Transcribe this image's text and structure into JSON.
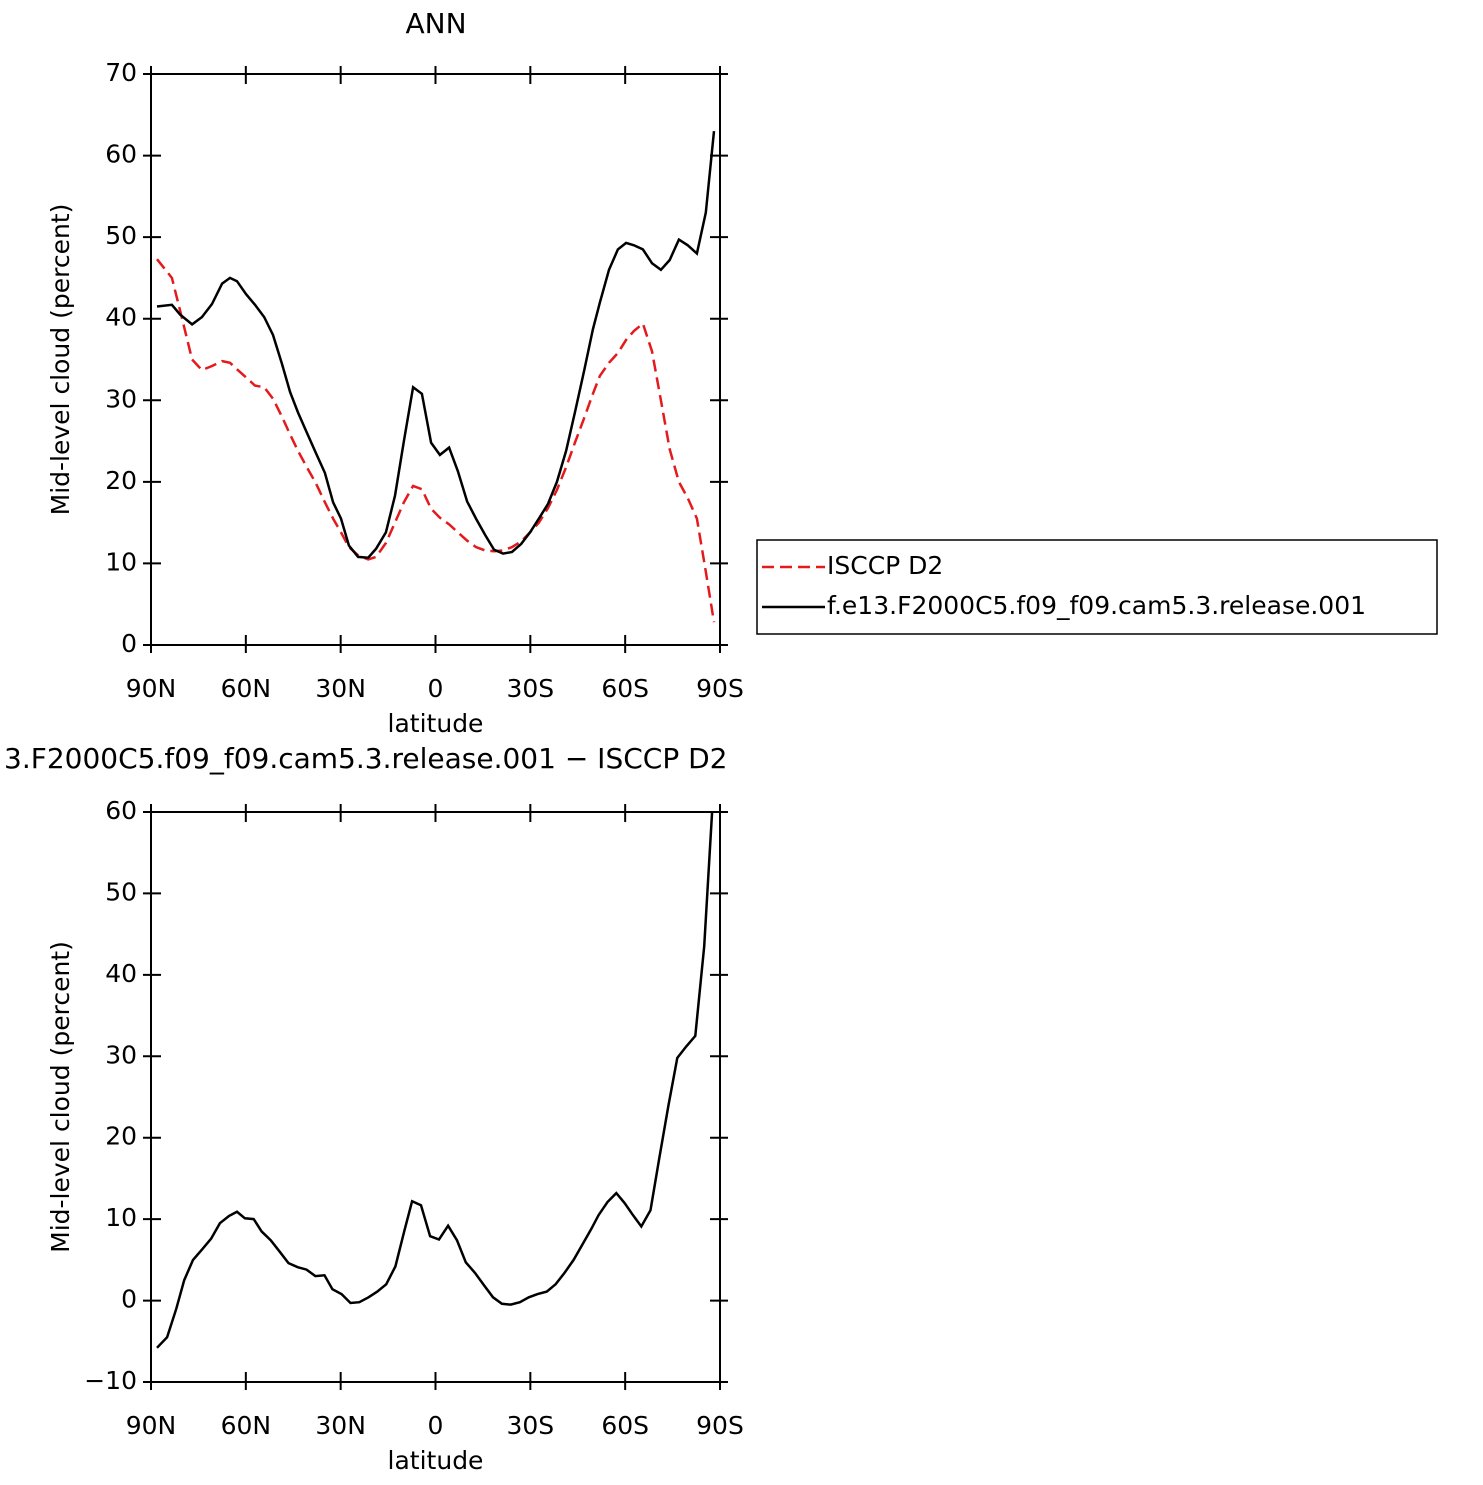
{
  "chart_data": [
    {
      "type": "line",
      "title": "ANN",
      "xlabel": "latitude",
      "ylabel": "Mid-level cloud (percent)",
      "xlim": [
        90,
        -90
      ],
      "xticks": [
        {
          "value": 90,
          "label": "90N"
        },
        {
          "value": 60,
          "label": "60N"
        },
        {
          "value": 30,
          "label": "30N"
        },
        0,
        {
          "value": -30,
          "label": "30S"
        },
        {
          "value": -60,
          "label": "60S"
        },
        {
          "value": -90,
          "label": "90S"
        }
      ],
      "ylim": [
        0,
        70
      ],
      "yticks": [
        0,
        10,
        20,
        30,
        40,
        50,
        60,
        70
      ],
      "legend": "right",
      "x": [
        88.1,
        83.4,
        80.8,
        77.0,
        73.9,
        70.7,
        67.5,
        65.0,
        62.8,
        59.9,
        57.1,
        54.2,
        51.4,
        48.6,
        46.0,
        43.5,
        41.0,
        37.8,
        35.0,
        32.4,
        29.9,
        27.4,
        24.5,
        21.3,
        18.8,
        15.7,
        12.8,
        10.0,
        7.1,
        4.3,
        1.4,
        -1.4,
        -4.3,
        -7.1,
        -10.0,
        -12.8,
        -15.7,
        -18.5,
        -21.4,
        -24.2,
        -27.1,
        -29.9,
        -32.7,
        -35.6,
        -38.4,
        -41.3,
        -44.1,
        -47.0,
        -49.8,
        -52.0,
        -54.9,
        -57.7,
        -60.3,
        -62.8,
        -65.6,
        -68.5,
        -71.3,
        -74.1,
        -77.0,
        -79.8,
        -82.7,
        -85.5,
        -88.1
      ],
      "series": [
        {
          "name": "ISCCP D2",
          "color": "#e41a1c",
          "dashed": true,
          "values": [
            47.3,
            45.0,
            41.0,
            35.0,
            33.7,
            34.2,
            34.8,
            34.6,
            33.8,
            32.8,
            31.8,
            31.6,
            30.2,
            28.0,
            25.8,
            23.8,
            22.0,
            19.8,
            17.5,
            15.5,
            13.8,
            12.0,
            11.0,
            10.5,
            10.8,
            12.5,
            15.0,
            17.5,
            19.5,
            19.1,
            16.7,
            15.6,
            14.8,
            13.8,
            12.8,
            12.0,
            11.6,
            11.5,
            11.6,
            12.0,
            12.7,
            13.8,
            15.0,
            16.8,
            19.0,
            21.8,
            24.8,
            27.8,
            30.8,
            33.0,
            34.6,
            35.8,
            37.4,
            38.5,
            39.4,
            36.0,
            30.0,
            24.0,
            20.0,
            18.0,
            15.5,
            9.0,
            2.8
          ]
        },
        {
          "name": "f.e13.F2000C5.f09_f09.cam5.3.release.001",
          "color": "#000000",
          "dashed": false,
          "values": [
            41.5,
            41.7,
            40.5,
            39.3,
            40.2,
            41.8,
            44.3,
            45.0,
            44.6,
            43.0,
            41.7,
            40.2,
            38.0,
            34.5,
            31.0,
            28.5,
            26.3,
            23.5,
            21.1,
            17.5,
            15.5,
            12.2,
            10.8,
            10.7,
            11.8,
            13.8,
            18.3,
            25.0,
            31.6,
            30.8,
            24.8,
            23.3,
            24.2,
            21.3,
            17.6,
            15.5,
            13.5,
            11.7,
            11.2,
            11.4,
            12.4,
            13.8,
            15.5,
            17.3,
            20.0,
            23.8,
            28.5,
            33.6,
            38.7,
            42.0,
            46.0,
            48.5,
            49.3,
            49.0,
            48.5,
            46.8,
            46.0,
            47.2,
            49.7,
            49.0,
            48.0,
            53.0,
            63.0
          ]
        }
      ]
    },
    {
      "type": "line",
      "title": "3.F2000C5.f09_f09.cam5.3.release.001 − ISCCP D2",
      "xlabel": "latitude",
      "ylabel": "Mid-level cloud (percent)",
      "xlim": [
        90,
        -90
      ],
      "xticks": [
        {
          "value": 90,
          "label": "90N"
        },
        {
          "value": 60,
          "label": "60N"
        },
        {
          "value": 30,
          "label": "30N"
        },
        0,
        {
          "value": -30,
          "label": "30S"
        },
        {
          "value": -60,
          "label": "60S"
        },
        {
          "value": -90,
          "label": "90S"
        }
      ],
      "ylim": [
        -10,
        60
      ],
      "yticks": [
        {
          "value": -10,
          "label": "−10"
        },
        0,
        10,
        20,
        30,
        40,
        50,
        60
      ],
      "x": [
        88.1,
        84.9,
        82.0,
        79.5,
        76.7,
        73.8,
        71.0,
        68.2,
        65.3,
        62.8,
        60.3,
        57.5,
        55.0,
        52.1,
        49.3,
        46.5,
        43.6,
        40.8,
        38.0,
        35.1,
        32.6,
        29.7,
        26.9,
        24.1,
        21.2,
        18.4,
        15.6,
        12.7,
        9.9,
        7.4,
        4.6,
        1.7,
        -1.1,
        -4.0,
        -6.8,
        -9.6,
        -12.5,
        -15.3,
        -18.2,
        -21.0,
        -23.8,
        -26.7,
        -29.5,
        -32.3,
        -35.2,
        -38.0,
        -40.8,
        -43.7,
        -46.5,
        -49.3,
        -51.6,
        -54.4,
        -57.2,
        -59.8,
        -62.3,
        -65.1,
        -68.0,
        -70.8,
        -73.7,
        -76.5,
        -79.3,
        -82.2,
        -85.0,
        -87.5
      ],
      "series": [
        {
          "color": "#000000",
          "dashed": false,
          "values": [
            -5.8,
            -4.5,
            -1.0,
            2.5,
            5.0,
            6.3,
            7.6,
            9.5,
            10.4,
            10.9,
            10.1,
            10.0,
            8.5,
            7.4,
            6.0,
            4.6,
            4.1,
            3.8,
            3.0,
            3.1,
            1.4,
            0.8,
            -0.3,
            -0.2,
            0.4,
            1.1,
            2.0,
            4.2,
            8.5,
            12.2,
            11.7,
            7.9,
            7.5,
            9.2,
            7.4,
            4.7,
            3.4,
            1.9,
            0.4,
            -0.4,
            -0.5,
            -0.2,
            0.4,
            0.8,
            1.1,
            2.0,
            3.4,
            5.0,
            6.9,
            8.8,
            10.5,
            12.1,
            13.2,
            12.0,
            10.6,
            9.1,
            11.1,
            17.5,
            24.0,
            29.8,
            31.2,
            32.5,
            43.5,
            60.0
          ]
        }
      ]
    }
  ]
}
